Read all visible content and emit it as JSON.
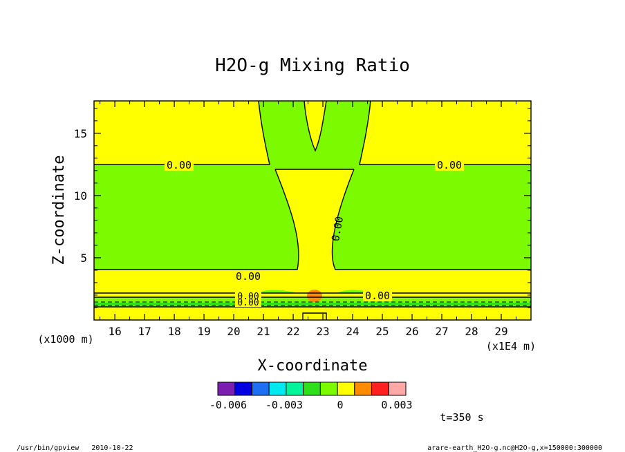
{
  "chart_data": {
    "type": "contour",
    "title": "H2O-g Mixing Ratio",
    "xlabel": "X-coordinate",
    "ylabel": "Z-coordinate",
    "x_unit": "(x1E4 m)",
    "y_unit": "(x1000 m)",
    "xlim": [
      15.3,
      30.0
    ],
    "ylim": [
      0,
      17.6
    ],
    "x_ticks": [
      "16",
      "17",
      "18",
      "19",
      "20",
      "21",
      "22",
      "23",
      "24",
      "25",
      "26",
      "27",
      "28",
      "29"
    ],
    "y_ticks": [
      "5",
      "10",
      "15"
    ],
    "contour_labels": [
      "0.00",
      "0.00",
      "0.00",
      "0.00",
      "0.00",
      "0.00",
      "0.00"
    ],
    "colorbar": {
      "colors": [
        "#7a1fb0",
        "#0000e0",
        "#1f6ff2",
        "#00e8f0",
        "#00f59a",
        "#2ee01a",
        "#7cfb00",
        "#ffff00",
        "#ff8c00",
        "#ff2020",
        "#ffa8a8"
      ],
      "labels": [
        "-0.006",
        "-0.003",
        "0",
        "0.003"
      ]
    },
    "time_label": "t=350 s",
    "footer_left": "/usr/bin/gpview   2010-10-22",
    "footer_right": "arare-earth_H2O-g.nc@H2O-g,x=150000:300000"
  },
  "colors": {
    "yellow": "#ffff00",
    "green": "#7cfb00",
    "bright_green": "#2ee01a",
    "orange": "#ff8c00"
  }
}
